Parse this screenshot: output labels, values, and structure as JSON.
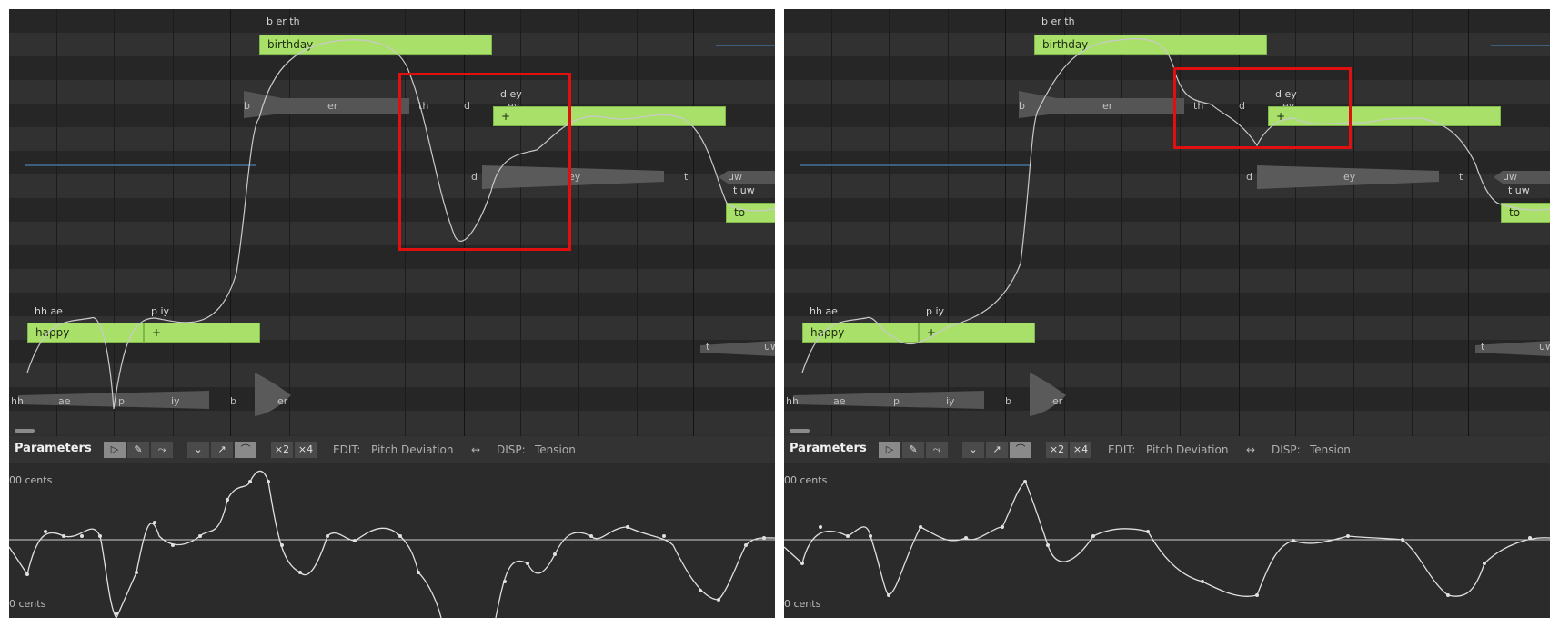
{
  "panels": [
    {
      "id": "left",
      "notes": [
        {
          "lyric": "birthday",
          "phonemes": "b er th"
        },
        {
          "lyric": "+",
          "phonemes": "d ey"
        },
        {
          "lyric": "to",
          "phonemes": "t uw"
        },
        {
          "lyric": "happy",
          "phonemes": "hh ae"
        },
        {
          "lyric": "+",
          "phonemes": "p iy"
        }
      ],
      "waveform_labels": [
        "b",
        "er",
        "th",
        "d",
        "ey",
        "d",
        "ey",
        "t",
        "uw",
        "t",
        "uw",
        "hh",
        "ae",
        "p",
        "iy",
        "b",
        "er"
      ],
      "highlight": "pitch-dip"
    },
    {
      "id": "right",
      "notes": [
        {
          "lyric": "birthday",
          "phonemes": "b er th"
        },
        {
          "lyric": "+",
          "phonemes": "d ey"
        },
        {
          "lyric": "to",
          "phonemes": "t uw"
        },
        {
          "lyric": "happy",
          "phonemes": "hh ae"
        },
        {
          "lyric": "+",
          "phonemes": "p iy"
        }
      ],
      "waveform_labels": [
        "b",
        "er",
        "th",
        "d",
        "ey",
        "d",
        "ey",
        "t",
        "uw",
        "t",
        "uw",
        "hh",
        "ae",
        "p",
        "iy",
        "b",
        "er"
      ],
      "highlight": "smoothed-transition"
    }
  ],
  "params": {
    "title": "Parameters",
    "tools": {
      "select": "select-icon",
      "pencil": "pencil-icon",
      "line": "line-icon"
    },
    "curve_tools": {
      "lower": "v-curve-icon",
      "rise": "rise-curve-icon",
      "arc": "arc-curve-icon"
    },
    "multipliers": [
      "×2",
      "×4"
    ],
    "edit_label": "EDIT:",
    "edit_value": "Pitch Deviation",
    "disp_label": "DISP:",
    "disp_value": "Tension",
    "top_axis": "00 cents",
    "bottom_axis": "0 cents"
  },
  "colors": {
    "note": "#a8e06a",
    "highlight": "#e01010",
    "curve": "#e0e0e0"
  }
}
